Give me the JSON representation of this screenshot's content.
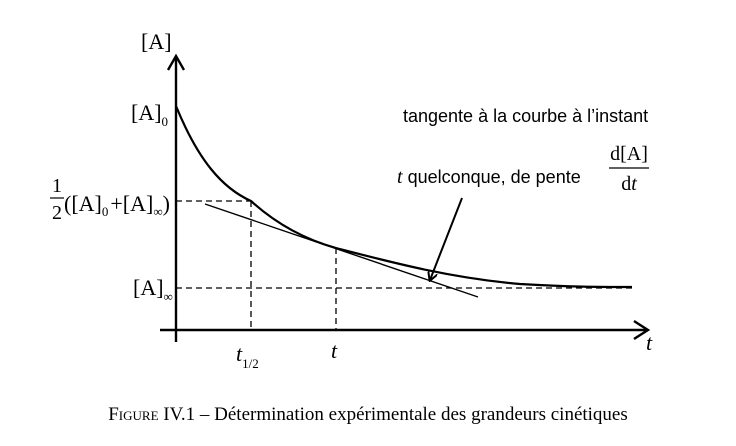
{
  "axes": {
    "y_label": "[A]",
    "x_label": "t"
  },
  "levels": {
    "a0": {
      "main": "[A]",
      "sub": "0"
    },
    "ainf": {
      "main": "[A]",
      "sub": "∞"
    },
    "half": {
      "coef_num": "1",
      "coef_den": "2",
      "open": "(",
      "a0_main": "[A]",
      "a0_sub": "0",
      "plus": "+",
      "ainf_main": "[A]",
      "ainf_sub": "∞",
      "close": ")"
    }
  },
  "ticks": {
    "t_half": {
      "main": "t",
      "sub": "1/2"
    },
    "t": "t"
  },
  "annotation": {
    "line1": "tangente à la courbe à l’instant",
    "line2_italic": "t",
    "line2_text": " quelconque, de pente",
    "frac_num": "d[A]",
    "frac_den_d": "d",
    "frac_den_t": "t"
  },
  "caption": {
    "figure_label": "Figure",
    "figure_number": " IV.1",
    "text": " – Détermination expérimentale des grandeurs cinétiques"
  }
}
